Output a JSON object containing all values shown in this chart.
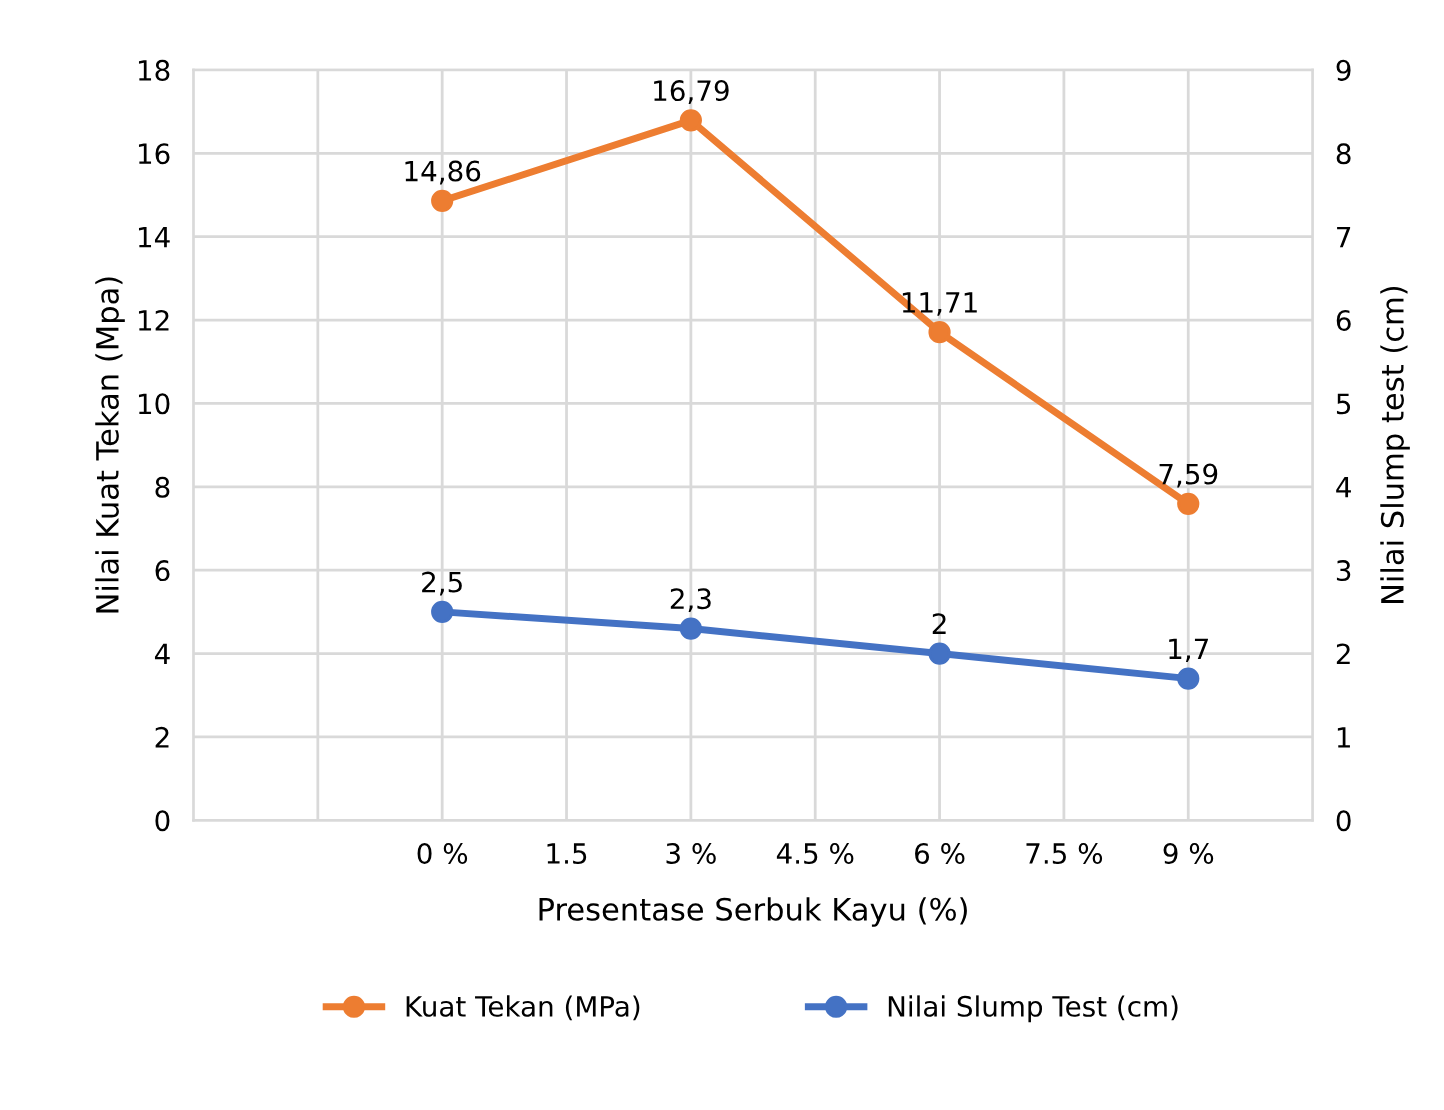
{
  "chart_data": {
    "type": "line",
    "xlabel": "Presentase Serbuk Kayu (%)",
    "ylabel": "Nilai Kuat Tekan (Mpa)",
    "y2label": "Nilai Slump test (cm)",
    "x": [
      0,
      3,
      6,
      9
    ],
    "series": [
      {
        "name": "Kuat Tekan (MPa)",
        "color": "#ed7d31",
        "values": [
          14.86,
          16.79,
          11.71,
          7.59
        ],
        "value_labels": [
          "14,86",
          "16,79",
          "11,71",
          "7,59"
        ]
      },
      {
        "name": "Nilai Slump Test (cm)",
        "color": "#4472c4",
        "axis": "y2",
        "values": [
          2.5,
          2.3,
          2,
          1.7
        ],
        "value_labels": [
          "2,5",
          "2,3",
          "2",
          "1,7"
        ]
      }
    ],
    "xlim": [
      -3,
      10.5
    ],
    "xticks": [
      {
        "value": -1.5,
        "label": null
      },
      {
        "value": 0,
        "label": "0 %"
      },
      1.5,
      {
        "value": 3,
        "label": "3 %"
      },
      {
        "value": 4.5,
        "label": "4.5 %"
      },
      {
        "value": 6,
        "label": "6 %"
      },
      {
        "value": 7.5,
        "label": "7.5 %"
      },
      {
        "value": 9,
        "label": "9 %"
      }
    ],
    "ylim": [
      0,
      18
    ],
    "yticks": [
      0,
      2,
      4,
      6,
      8,
      10,
      12,
      14,
      16,
      18
    ],
    "y2lim": [
      0,
      9
    ],
    "y2ticks": [
      0,
      1,
      2,
      3,
      4,
      5,
      6,
      7,
      8,
      9
    ],
    "grid": true,
    "legend": "bottom",
    "marker": "circle",
    "line_style": "solid"
  }
}
